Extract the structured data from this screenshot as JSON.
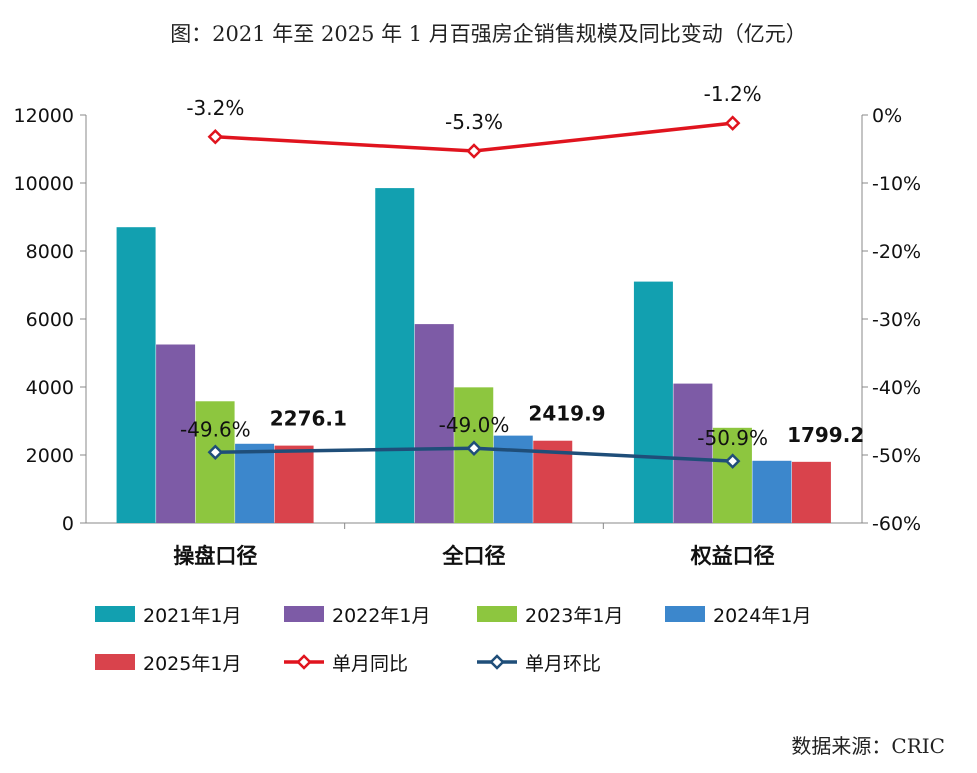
{
  "title": "图：2021 年至 2025 年 1 月百强房企销售规模及同比变动（亿元）",
  "source": "数据来源：CRIC",
  "chart_data": {
    "type": "bar",
    "categories": [
      "操盘口径",
      "全口径",
      "权益口径"
    ],
    "series": [
      {
        "name": "2021年1月",
        "color": "#12A0B0",
        "values": [
          8700,
          9850,
          7100
        ]
      },
      {
        "name": "2022年1月",
        "color": "#7D5BA6",
        "values": [
          5250,
          5850,
          4100
        ]
      },
      {
        "name": "2023年1月",
        "color": "#8DC63F",
        "values": [
          3580,
          3990,
          2800
        ]
      },
      {
        "name": "2024年1月",
        "color": "#3C87CC",
        "values": [
          2330,
          2570,
          1830
        ]
      },
      {
        "name": "2025年1月",
        "color": "#D9434C",
        "values": [
          2276.1,
          2419.9,
          1799.2
        ]
      }
    ],
    "bar_value_labels": [
      "2276.1",
      "2419.9",
      "1799.2"
    ],
    "lines": [
      {
        "name": "单月同比",
        "color": "#E0141E",
        "axis": "right",
        "values": [
          -3.2,
          -5.3,
          -1.2
        ],
        "labels": [
          "-3.2%",
          "-5.3%",
          "-1.2%"
        ]
      },
      {
        "name": "单月环比",
        "color": "#1F4E79",
        "axis": "right",
        "values": [
          -49.6,
          -49.0,
          -50.9
        ],
        "labels": [
          "-49.6%",
          "-49.0%",
          "-50.9%"
        ]
      }
    ],
    "y_left": {
      "min": 0,
      "max": 12000,
      "ticks": [
        "0",
        "2000",
        "4000",
        "6000",
        "8000",
        "10000",
        "12000"
      ]
    },
    "y_right": {
      "min": -60,
      "max": 0,
      "ticks": [
        "-60%",
        "-50%",
        "-40%",
        "-30%",
        "-20%",
        "-10%",
        "0%"
      ]
    },
    "legend": [
      "2021年1月",
      "2022年1月",
      "2023年1月",
      "2024年1月",
      "2025年1月",
      "单月同比",
      "单月环比"
    ],
    "legend_position": "bottom"
  }
}
